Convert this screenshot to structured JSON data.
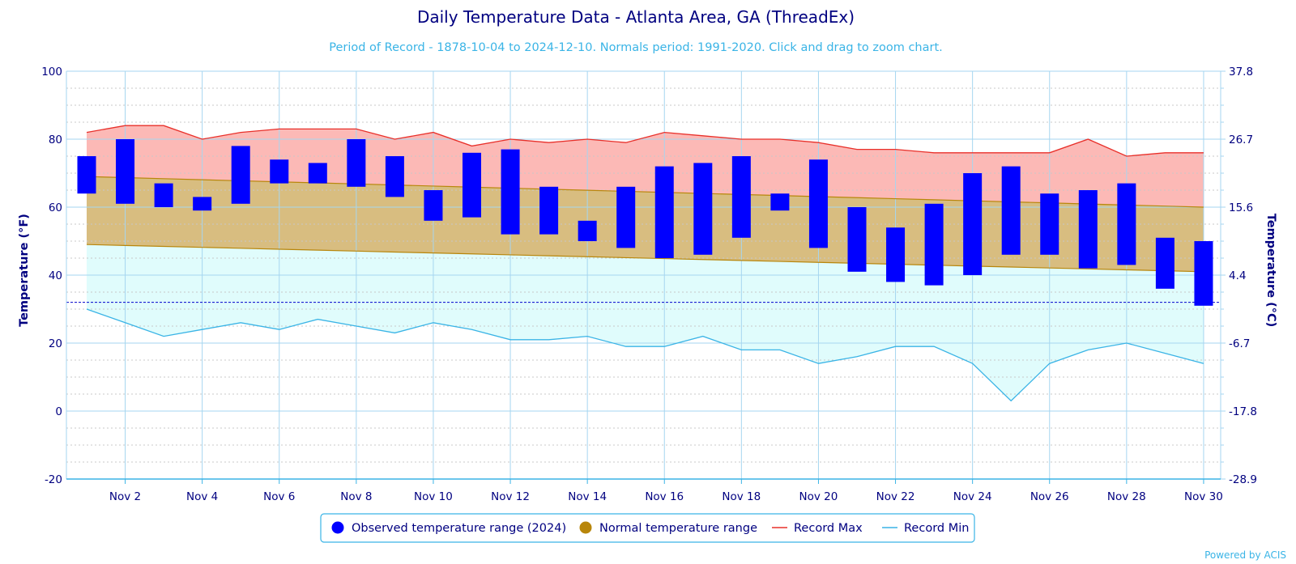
{
  "chart_data": {
    "type": "bar",
    "title": "Daily Temperature Data - Atlanta Area, GA (ThreadEx)",
    "subtitle": "Period of Record - 1878-10-04 to 2024-12-10. Normals period: 1991-2020. Click and drag to zoom chart.",
    "ylabel_left": "Temperature (°F)",
    "ylabel_right": "Temperature (°C)",
    "ylim": [
      -20,
      100
    ],
    "y_ticks": [
      -20,
      0,
      20,
      40,
      60,
      80,
      100
    ],
    "y_ticks_right": [
      "-28.9",
      "-17.8",
      "-6.7",
      "4.4",
      "15.6",
      "26.7",
      "37.8"
    ],
    "x_tick_labels": [
      "Nov 2",
      "Nov 4",
      "Nov 6",
      "Nov 8",
      "Nov 10",
      "Nov 12",
      "Nov 14",
      "Nov 16",
      "Nov 18",
      "Nov 20",
      "Nov 22",
      "Nov 24",
      "Nov 26",
      "Nov 28",
      "Nov 30"
    ],
    "days": [
      1,
      2,
      3,
      4,
      5,
      6,
      7,
      8,
      9,
      10,
      11,
      12,
      13,
      14,
      15,
      16,
      17,
      18,
      19,
      20,
      21,
      22,
      23,
      24,
      25,
      26,
      27,
      28,
      29,
      30
    ],
    "freezing_line": 32,
    "grid": true,
    "legend_position": "bottom-center",
    "series": [
      {
        "name": "Observed temperature range (2024)",
        "kind": "floating-bar",
        "color": "#0000ff",
        "low": [
          64,
          61,
          60,
          59,
          61,
          67,
          67,
          66,
          63,
          56,
          57,
          52,
          52,
          50,
          48,
          45,
          46,
          51,
          59,
          48,
          41,
          38,
          37,
          40,
          46,
          46,
          42,
          43,
          36,
          31
        ],
        "high": [
          75,
          80,
          67,
          63,
          78,
          74,
          73,
          80,
          75,
          65,
          76,
          77,
          66,
          56,
          66,
          72,
          73,
          75,
          64,
          74,
          60,
          54,
          61,
          70,
          72,
          64,
          65,
          67,
          51,
          50
        ]
      },
      {
        "name": "Normal temperature range",
        "kind": "area-range",
        "color": "#b8860b",
        "low_start": 49,
        "low_end": 41,
        "high_start": 69,
        "high_end": 60
      },
      {
        "name": "Record Max",
        "kind": "line",
        "color": "#e8302a",
        "values": [
          82,
          84,
          84,
          80,
          82,
          83,
          83,
          83,
          80,
          82,
          78,
          80,
          79,
          80,
          79,
          82,
          81,
          80,
          80,
          79,
          77,
          77,
          76,
          76,
          76,
          76,
          80,
          75,
          76,
          76
        ]
      },
      {
        "name": "Record Min",
        "kind": "line",
        "color": "#3ab4e6",
        "values": [
          30,
          26,
          22,
          24,
          26,
          24,
          27,
          25,
          23,
          26,
          24,
          21,
          21,
          22,
          19,
          19,
          22,
          18,
          18,
          14,
          16,
          19,
          19,
          14,
          3,
          14,
          18,
          20,
          17,
          14
        ]
      }
    ]
  },
  "credit": "Powered by ACIS",
  "legend": {
    "observed": "Observed temperature range (2024)",
    "normal": "Normal temperature range",
    "record_max": "Record Max",
    "record_min": "Record Min"
  },
  "colors": {
    "observed": "#0000ff",
    "normal_fill": "#d8bd80",
    "normal_line": "#b8860b",
    "record_max_fill": "#fcb9b6",
    "record_min_fill": "#e0fcfc",
    "record_max": "#e8302a",
    "record_min": "#3ab4e6"
  }
}
